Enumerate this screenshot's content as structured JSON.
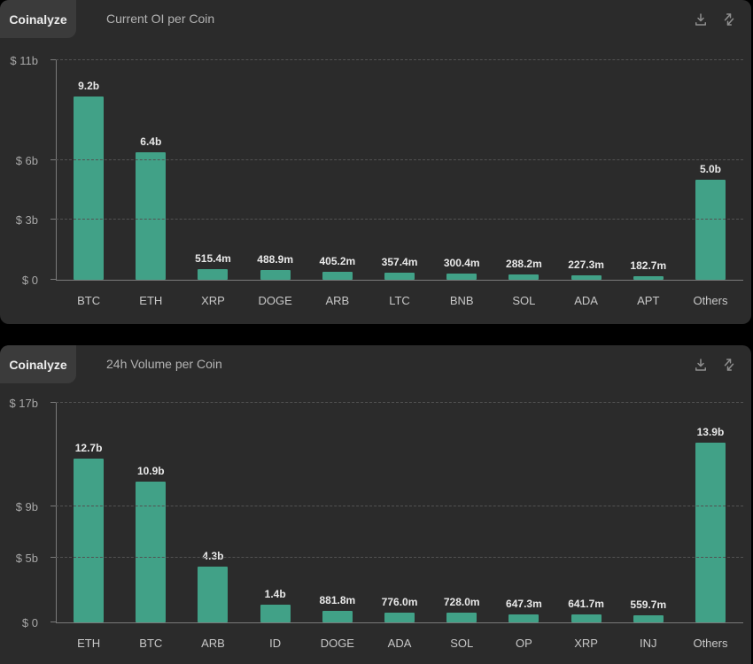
{
  "colors": {
    "page_bg": "#000000",
    "panel_bg": "#2b2b2b",
    "tab_bg": "#3b3b3b",
    "bar": "#41a187",
    "grid": "#525252",
    "axis": "#7a7a7a"
  },
  "panels": [
    {
      "brand": "Coinalyze",
      "title": "Current OI per Coin",
      "header_icons": [
        "download-icon",
        "diagonal-arrows-icon"
      ],
      "chart_data": {
        "type": "bar",
        "title": "Current OI per Coin",
        "categories": [
          "BTC",
          "ETH",
          "XRP",
          "DOGE",
          "ARB",
          "LTC",
          "BNB",
          "SOL",
          "ADA",
          "APT",
          "Others"
        ],
        "values": [
          9.2,
          6.4,
          0.5154,
          0.4889,
          0.4052,
          0.3574,
          0.3004,
          0.2882,
          0.2273,
          0.1827,
          5.0
        ],
        "value_labels": [
          "9.2b",
          "6.4b",
          "515.4m",
          "488.9m",
          "405.2m",
          "357.4m",
          "300.4m",
          "288.2m",
          "227.3m",
          "182.7m",
          "5.0b"
        ],
        "unit": "USD billions",
        "ylim": [
          0,
          11
        ],
        "yticks": [
          {
            "value": 0,
            "label": "$ 0"
          },
          {
            "value": 3,
            "label": "$ 3b"
          },
          {
            "value": 6,
            "label": "$ 6b"
          },
          {
            "value": 11,
            "label": "$ 11b"
          }
        ],
        "bar_color": "#41a187",
        "grid": "horizontal-dashed",
        "legend": "none"
      }
    },
    {
      "brand": "Coinalyze",
      "title": "24h Volume per Coin",
      "header_icons": [
        "download-icon",
        "diagonal-arrows-icon"
      ],
      "chart_data": {
        "type": "bar",
        "title": "24h Volume per Coin",
        "categories": [
          "ETH",
          "BTC",
          "ARB",
          "ID",
          "DOGE",
          "ADA",
          "SOL",
          "OP",
          "XRP",
          "INJ",
          "Others"
        ],
        "values": [
          12.7,
          10.9,
          4.3,
          1.4,
          0.8818,
          0.776,
          0.728,
          0.6473,
          0.6417,
          0.5597,
          13.9
        ],
        "value_labels": [
          "12.7b",
          "10.9b",
          "4.3b",
          "1.4b",
          "881.8m",
          "776.0m",
          "728.0m",
          "647.3m",
          "641.7m",
          "559.7m",
          "13.9b"
        ],
        "unit": "USD billions",
        "ylim": [
          0,
          17
        ],
        "yticks": [
          {
            "value": 0,
            "label": "$ 0"
          },
          {
            "value": 5,
            "label": "$ 5b"
          },
          {
            "value": 9,
            "label": "$ 9b"
          },
          {
            "value": 17,
            "label": "$ 17b"
          }
        ],
        "bar_color": "#41a187",
        "grid": "horizontal-dashed",
        "legend": "none"
      }
    }
  ]
}
